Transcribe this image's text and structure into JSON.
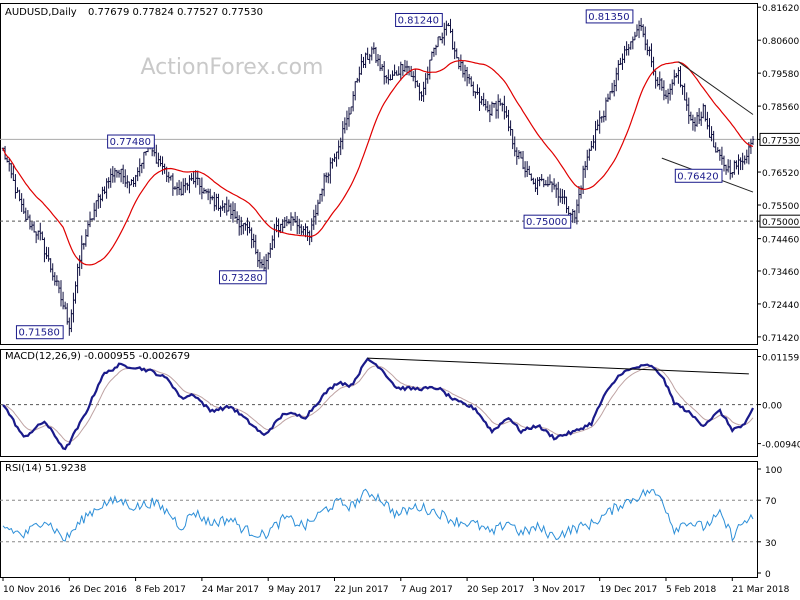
{
  "chart_data": {
    "type": "candlestick",
    "symbol": "AUDUSD,Daily",
    "ohlc_header": "0.77679 0.77824 0.77527 0.77530",
    "watermark": "ActionForex.com",
    "price_axis": {
      "ticks": [
        "0.81620",
        "0.80600",
        "0.79580",
        "0.78560",
        "0.77530",
        "0.76520",
        "0.75500",
        "0.75000",
        "0.74460",
        "0.73460",
        "0.72440",
        "0.71420"
      ],
      "tick_values": [
        0.8162,
        0.806,
        0.7958,
        0.7856,
        0.7753,
        0.7652,
        0.755,
        0.75,
        0.7446,
        0.7346,
        0.7244,
        0.7142
      ],
      "current": "0.77530",
      "level_line": "0.75000",
      "range": [
        0.712,
        0.8175
      ]
    },
    "x_labels": [
      "10 Nov 2016",
      "26 Dec 2016",
      "8 Feb 2017",
      "24 Mar 2017",
      "9 May 2017",
      "22 Jun 2017",
      "7 Aug 2017",
      "20 Sep 2017",
      "3 Nov 2017",
      "19 Dec 2017",
      "5 Feb 2018",
      "21 Mar 2018"
    ],
    "x_label_index": [
      0,
      32,
      64,
      96,
      128,
      160,
      192,
      224,
      256,
      288,
      320,
      352
    ],
    "price_labels": [
      {
        "text": "0.71580",
        "value": 0.7158,
        "index": 30
      },
      {
        "text": "0.77480",
        "value": 0.7748,
        "index": 74
      },
      {
        "text": "0.73280",
        "value": 0.7328,
        "index": 128
      },
      {
        "text": "0.81240",
        "value": 0.8124,
        "index": 213
      },
      {
        "text": "0.75000",
        "value": 0.75,
        "index": 275
      },
      {
        "text": "0.81350",
        "value": 0.8135,
        "index": 305
      },
      {
        "text": "0.76420",
        "value": 0.7642,
        "index": 348
      }
    ],
    "close_anchors": [
      [
        0,
        0.772
      ],
      [
        10,
        0.752
      ],
      [
        18,
        0.745
      ],
      [
        26,
        0.73
      ],
      [
        32,
        0.718
      ],
      [
        38,
        0.742
      ],
      [
        46,
        0.757
      ],
      [
        54,
        0.766
      ],
      [
        62,
        0.762
      ],
      [
        70,
        0.773
      ],
      [
        76,
        0.768
      ],
      [
        84,
        0.759
      ],
      [
        92,
        0.763
      ],
      [
        100,
        0.757
      ],
      [
        110,
        0.753
      ],
      [
        118,
        0.747
      ],
      [
        126,
        0.735
      ],
      [
        132,
        0.748
      ],
      [
        140,
        0.751
      ],
      [
        148,
        0.745
      ],
      [
        154,
        0.761
      ],
      [
        160,
        0.771
      ],
      [
        166,
        0.781
      ],
      [
        172,
        0.797
      ],
      [
        178,
        0.803
      ],
      [
        186,
        0.793
      ],
      [
        194,
        0.799
      ],
      [
        202,
        0.789
      ],
      [
        208,
        0.803
      ],
      [
        214,
        0.811
      ],
      [
        220,
        0.799
      ],
      [
        226,
        0.791
      ],
      [
        234,
        0.784
      ],
      [
        240,
        0.787
      ],
      [
        248,
        0.771
      ],
      [
        256,
        0.761
      ],
      [
        264,
        0.763
      ],
      [
        270,
        0.757
      ],
      [
        276,
        0.751
      ],
      [
        280,
        0.765
      ],
      [
        286,
        0.778
      ],
      [
        292,
        0.787
      ],
      [
        298,
        0.799
      ],
      [
        304,
        0.806
      ],
      [
        308,
        0.811
      ],
      [
        314,
        0.797
      ],
      [
        320,
        0.787
      ],
      [
        326,
        0.796
      ],
      [
        332,
        0.78
      ],
      [
        338,
        0.784
      ],
      [
        344,
        0.771
      ],
      [
        350,
        0.766
      ],
      [
        356,
        0.768
      ],
      [
        362,
        0.775
      ]
    ],
    "candle_count": 363,
    "moving_average": {
      "color": "#e00000"
    },
    "channel": {
      "upper": [
        [
          326,
          0.7993
        ],
        [
          362,
          0.783
        ]
      ],
      "lower": [
        [
          318,
          0.7695
        ],
        [
          362,
          0.759
        ]
      ]
    },
    "macd": {
      "label": "MACD(12,26,9) -0.000955 -0.002679",
      "ticks": [
        "0.01159",
        "0.00",
        "-0.009408"
      ],
      "tick_values": [
        0.01159,
        0,
        -0.009408
      ],
      "range": [
        -0.0124,
        0.0134
      ],
      "anchors": [
        [
          0,
          0.0002
        ],
        [
          10,
          -0.008
        ],
        [
          20,
          -0.004
        ],
        [
          30,
          -0.011
        ],
        [
          40,
          -0.002
        ],
        [
          48,
          0.007
        ],
        [
          56,
          0.0095
        ],
        [
          64,
          0.009
        ],
        [
          72,
          0.008
        ],
        [
          80,
          0.006
        ],
        [
          86,
          0.0015
        ],
        [
          92,
          0.0025
        ],
        [
          100,
          -0.0015
        ],
        [
          110,
          -0.0005
        ],
        [
          116,
          -0.003
        ],
        [
          126,
          -0.0075
        ],
        [
          136,
          -0.002
        ],
        [
          146,
          -0.003
        ],
        [
          156,
          0.003
        ],
        [
          162,
          0.0055
        ],
        [
          168,
          0.0045
        ],
        [
          176,
          0.011
        ],
        [
          182,
          0.009
        ],
        [
          190,
          0.004
        ],
        [
          200,
          0.0038
        ],
        [
          210,
          0.004
        ],
        [
          218,
          0.001
        ],
        [
          228,
          -0.001
        ],
        [
          236,
          -0.0065
        ],
        [
          244,
          -0.003
        ],
        [
          250,
          -0.0065
        ],
        [
          258,
          -0.005
        ],
        [
          266,
          -0.008
        ],
        [
          276,
          -0.0065
        ],
        [
          284,
          -0.0045
        ],
        [
          290,
          0.002
        ],
        [
          298,
          0.0075
        ],
        [
          306,
          0.009
        ],
        [
          312,
          0.0095
        ],
        [
          318,
          0.007
        ],
        [
          324,
          0.0005
        ],
        [
          330,
          -0.0015
        ],
        [
          338,
          -0.005
        ],
        [
          346,
          -0.0015
        ],
        [
          352,
          -0.006
        ],
        [
          358,
          -0.005
        ],
        [
          362,
          -0.001
        ]
      ],
      "trend_line": [
        [
          176,
          0.0112
        ],
        [
          360,
          0.0074
        ]
      ]
    },
    "rsi": {
      "label": "RSI(14) 51.9238",
      "ticks": [
        "100",
        "70",
        "30",
        "0"
      ],
      "tick_values": [
        100,
        70,
        30,
        0
      ],
      "range": [
        0,
        100
      ],
      "anchors": [
        [
          0,
          45
        ],
        [
          10,
          36
        ],
        [
          20,
          52
        ],
        [
          30,
          32
        ],
        [
          40,
          55
        ],
        [
          48,
          66
        ],
        [
          56,
          70
        ],
        [
          64,
          63
        ],
        [
          72,
          68
        ],
        [
          80,
          58
        ],
        [
          86,
          44
        ],
        [
          92,
          59
        ],
        [
          100,
          48
        ],
        [
          110,
          52
        ],
        [
          116,
          42
        ],
        [
          126,
          36
        ],
        [
          136,
          53
        ],
        [
          146,
          45
        ],
        [
          156,
          62
        ],
        [
          162,
          68
        ],
        [
          168,
          64
        ],
        [
          176,
          78
        ],
        [
          182,
          72
        ],
        [
          190,
          56
        ],
        [
          200,
          64
        ],
        [
          210,
          58
        ],
        [
          218,
          50
        ],
        [
          228,
          47
        ],
        [
          236,
          38
        ],
        [
          244,
          50
        ],
        [
          250,
          38
        ],
        [
          258,
          44
        ],
        [
          266,
          35
        ],
        [
          276,
          43
        ],
        [
          284,
          47
        ],
        [
          290,
          55
        ],
        [
          298,
          66
        ],
        [
          306,
          73
        ],
        [
          312,
          79
        ],
        [
          318,
          72
        ],
        [
          324,
          42
        ],
        [
          330,
          50
        ],
        [
          338,
          44
        ],
        [
          346,
          56
        ],
        [
          352,
          36
        ],
        [
          358,
          50
        ],
        [
          362,
          52
        ]
      ]
    }
  }
}
